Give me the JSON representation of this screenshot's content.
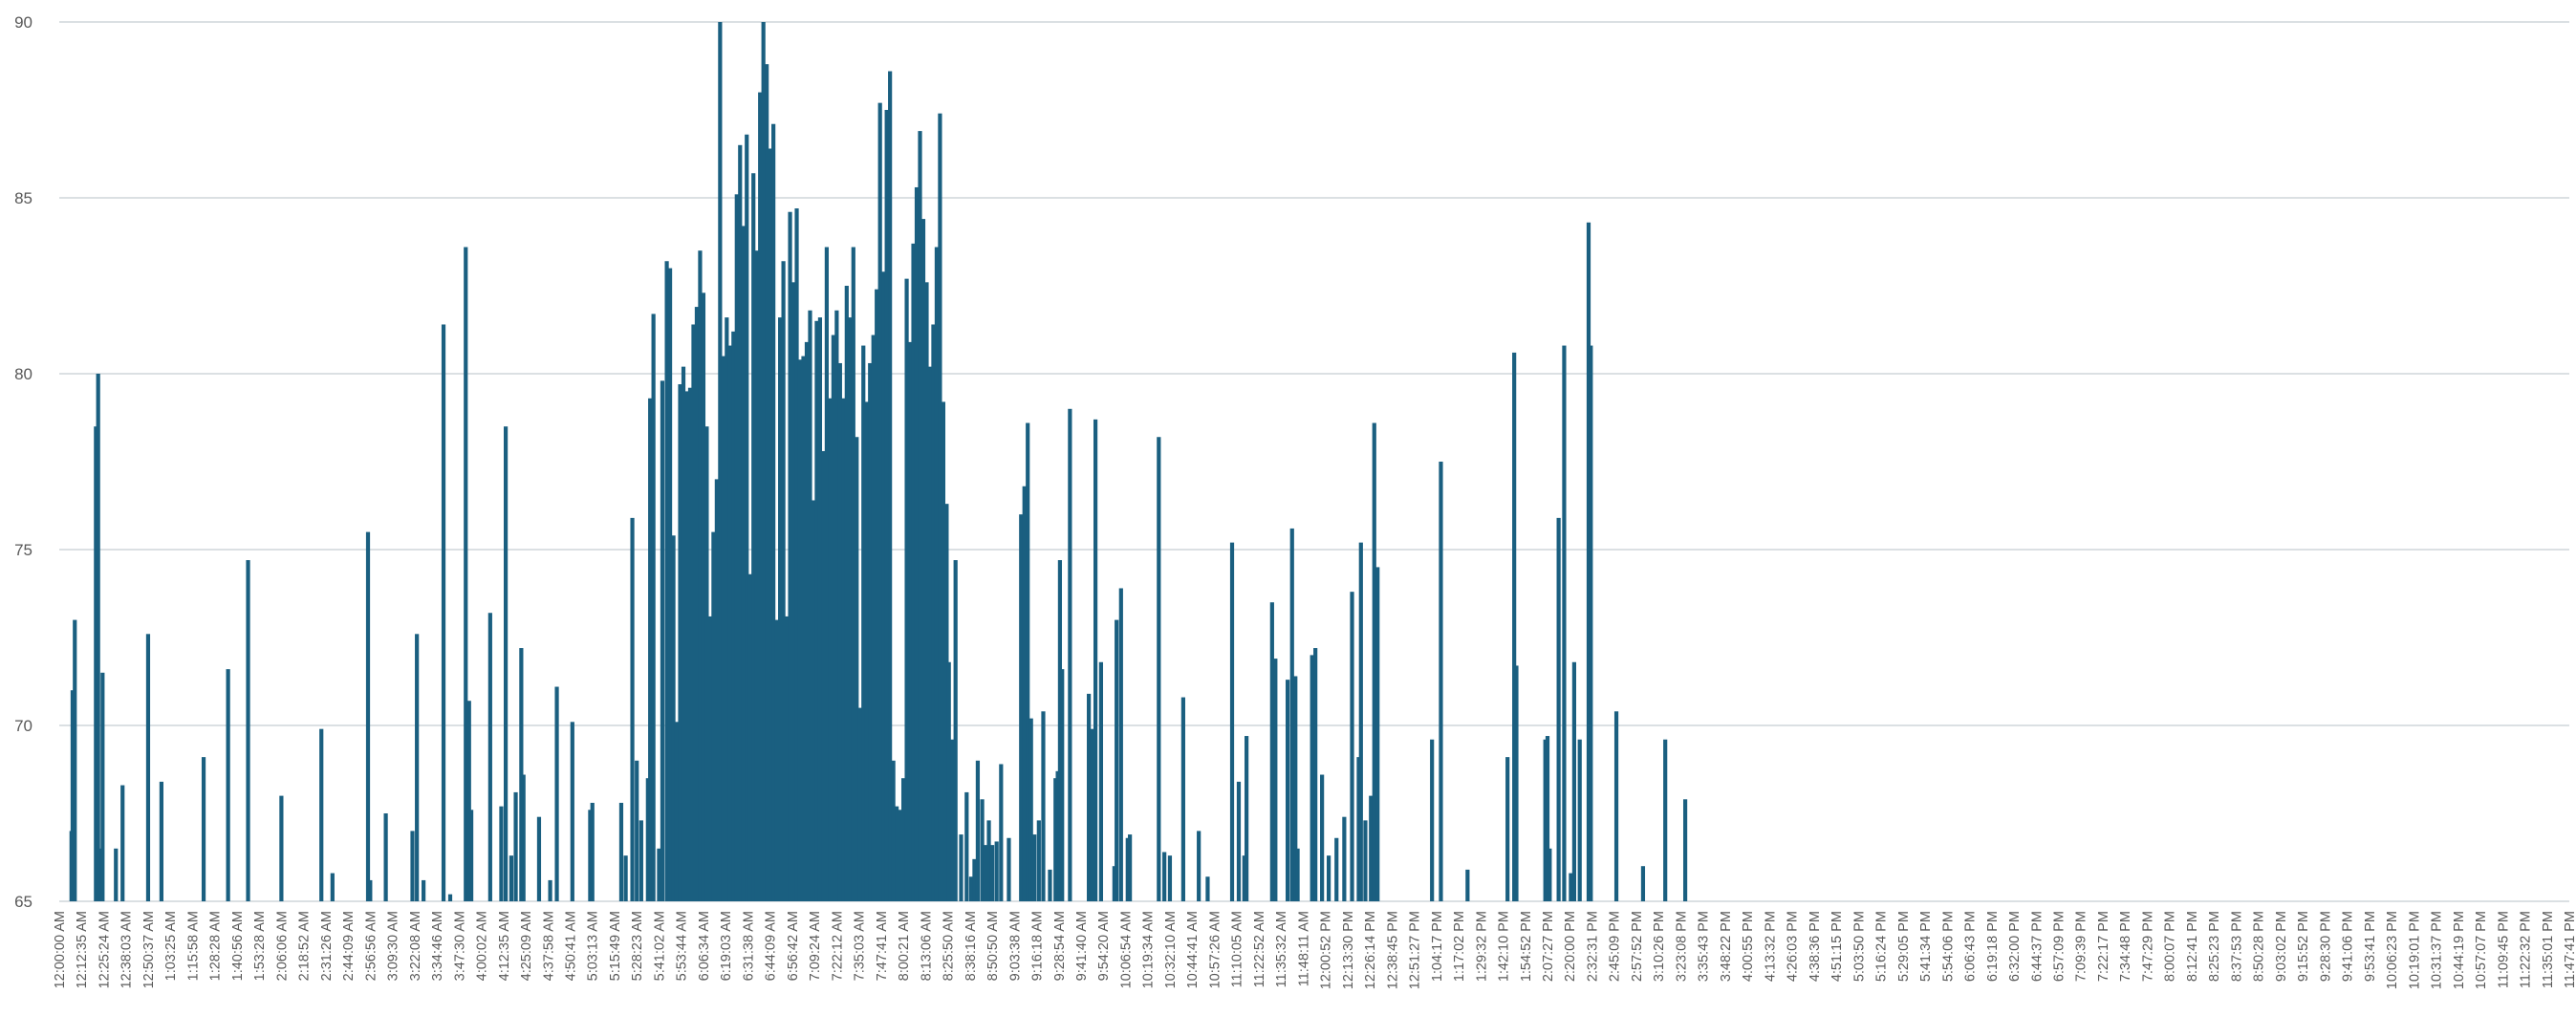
{
  "chart_data": {
    "type": "bar",
    "title": "",
    "xlabel": "",
    "ylabel": "",
    "ylim": [
      65,
      90
    ],
    "yticks": [
      "65",
      "70",
      "75",
      "80",
      "85",
      "90"
    ],
    "grid": true,
    "legend": "none",
    "colors": {
      "bar": "#1a5f80",
      "grid": "#cfd5da",
      "tick_text": "#595959"
    },
    "x_tick_labels": [
      "12:00:00 AM",
      "12:12:35 AM",
      "12:25:24 AM",
      "12:38:03 AM",
      "12:50:37 AM",
      "1:03:25 AM",
      "1:15:58 AM",
      "1:28:28 AM",
      "1:40:56 AM",
      "1:53:28 AM",
      "2:06:06 AM",
      "2:18:52 AM",
      "2:31:26 AM",
      "2:44:09 AM",
      "2:56:56 AM",
      "3:09:30 AM",
      "3:22:08 AM",
      "3:34:46 AM",
      "3:47:30 AM",
      "4:00:02 AM",
      "4:12:35 AM",
      "4:25:09 AM",
      "4:37:58 AM",
      "4:50:41 AM",
      "5:03:13 AM",
      "5:15:49 AM",
      "5:28:23 AM",
      "5:41:02 AM",
      "5:53:44 AM",
      "6:06:34 AM",
      "6:19:03 AM",
      "6:31:38 AM",
      "6:44:09 AM",
      "6:56:42 AM",
      "7:09:24 AM",
      "7:22:12 AM",
      "7:35:03 AM",
      "7:47:41 AM",
      "8:00:21 AM",
      "8:13:06 AM",
      "8:25:50 AM",
      "8:38:16 AM",
      "8:50:50 AM",
      "9:03:38 AM",
      "9:16:18 AM",
      "9:28:54 AM",
      "9:41:40 AM",
      "9:54:20 AM",
      "10:06:54 AM",
      "10:19:34 AM",
      "10:32:10 AM",
      "10:44:41 AM",
      "10:57:26 AM",
      "11:10:05 AM",
      "11:22:52 AM",
      "11:35:32 AM",
      "11:48:11 AM",
      "12:00:52 PM",
      "12:13:30 PM",
      "12:26:14 PM",
      "12:38:45 PM",
      "12:51:27 PM",
      "1:04:17 PM",
      "1:17:02 PM",
      "1:29:32 PM",
      "1:42:10 PM",
      "1:54:52 PM",
      "2:07:27 PM",
      "2:20:00 PM",
      "2:32:31 PM",
      "2:45:09 PM",
      "2:57:52 PM",
      "3:10:26 PM",
      "3:23:08 PM",
      "3:35:43 PM",
      "3:48:22 PM",
      "4:00:55 PM",
      "4:13:32 PM",
      "4:26:03 PM",
      "4:38:36 PM",
      "4:51:15 PM",
      "5:03:50 PM",
      "5:16:24 PM",
      "5:29:05 PM",
      "5:41:34 PM",
      "5:54:06 PM",
      "6:06:43 PM",
      "6:19:18 PM",
      "6:32:00 PM",
      "6:44:37 PM",
      "6:57:09 PM",
      "7:09:39 PM",
      "7:22:17 PM",
      "7:34:48 PM",
      "7:47:29 PM",
      "8:00:07 PM",
      "8:12:41 PM",
      "8:25:23 PM",
      "8:37:53 PM",
      "8:50:28 PM",
      "9:03:02 PM",
      "9:15:52 PM",
      "9:28:30 PM",
      "9:41:06 PM",
      "9:53:41 PM",
      "10:06:23 PM",
      "10:19:01 PM",
      "10:31:37 PM",
      "10:44:19 PM",
      "10:57:07 PM",
      "11:09:45 PM",
      "11:22:32 PM",
      "11:35:01 PM",
      "11:47:41 PM"
    ],
    "bars": [
      [
        0.55,
        67
      ],
      [
        0.6,
        71
      ],
      [
        0.7,
        73
      ],
      [
        1.65,
        78.5
      ],
      [
        1.75,
        80
      ],
      [
        1.85,
        66.5
      ],
      [
        1.95,
        71.5
      ],
      [
        2.55,
        66.5
      ],
      [
        2.85,
        68.3
      ],
      [
        4.0,
        72.6
      ],
      [
        4.6,
        68.4
      ],
      [
        6.5,
        69.1
      ],
      [
        7.6,
        71.6
      ],
      [
        8.5,
        74.7
      ],
      [
        10.0,
        68
      ],
      [
        11.8,
        69.9
      ],
      [
        12.3,
        65.8
      ],
      [
        13.9,
        75.5
      ],
      [
        14.0,
        65.6
      ],
      [
        14.7,
        67.5
      ],
      [
        15.9,
        67
      ],
      [
        16.1,
        72.6
      ],
      [
        16.4,
        65.6
      ],
      [
        17.3,
        81.4
      ],
      [
        17.6,
        65.2
      ],
      [
        18.3,
        83.6
      ],
      [
        18.45,
        70.7
      ],
      [
        18.55,
        67.6
      ],
      [
        19.4,
        73.2
      ],
      [
        19.9,
        67.7
      ],
      [
        20.1,
        78.5
      ],
      [
        20.35,
        66.3
      ],
      [
        20.55,
        68.1
      ],
      [
        20.8,
        72.2
      ],
      [
        20.9,
        68.6
      ],
      [
        21.6,
        67.4
      ],
      [
        22.1,
        65.6
      ],
      [
        22.4,
        71.1
      ],
      [
        23.1,
        70.1
      ],
      [
        23.9,
        67.6
      ],
      [
        24.0,
        67.8
      ],
      [
        25.3,
        67.8
      ],
      [
        25.5,
        66.3
      ],
      [
        25.8,
        75.9
      ],
      [
        26.0,
        69
      ],
      [
        26.2,
        67.3
      ],
      [
        26.5,
        68.5
      ],
      [
        26.6,
        79.3
      ],
      [
        26.75,
        81.7
      ],
      [
        27.0,
        66.5
      ],
      [
        27.15,
        79.8
      ],
      [
        27.35,
        83.2
      ],
      [
        27.5,
        83
      ],
      [
        27.65,
        75.4
      ],
      [
        27.8,
        70.1
      ],
      [
        27.95,
        79.7
      ],
      [
        28.1,
        80.2
      ],
      [
        28.25,
        79.5
      ],
      [
        28.4,
        79.6
      ],
      [
        28.55,
        81.4
      ],
      [
        28.7,
        81.9
      ],
      [
        28.85,
        83.5
      ],
      [
        29.0,
        82.3
      ],
      [
        29.15,
        78.5
      ],
      [
        29.3,
        73.1
      ],
      [
        29.45,
        75.5
      ],
      [
        29.6,
        77
      ],
      [
        29.75,
        90
      ],
      [
        29.9,
        80.5
      ],
      [
        30.05,
        81.6
      ],
      [
        30.2,
        80.8
      ],
      [
        30.35,
        81.2
      ],
      [
        30.5,
        85.1
      ],
      [
        30.65,
        86.5
      ],
      [
        30.8,
        84.2
      ],
      [
        30.95,
        86.8
      ],
      [
        31.1,
        74.3
      ],
      [
        31.25,
        85.7
      ],
      [
        31.4,
        83.5
      ],
      [
        31.55,
        88
      ],
      [
        31.7,
        90
      ],
      [
        31.85,
        88.8
      ],
      [
        32.0,
        86.4
      ],
      [
        32.15,
        87.1
      ],
      [
        32.3,
        73
      ],
      [
        32.45,
        81.6
      ],
      [
        32.6,
        83.2
      ],
      [
        32.75,
        73.1
      ],
      [
        32.9,
        84.6
      ],
      [
        33.05,
        82.6
      ],
      [
        33.2,
        84.7
      ],
      [
        33.35,
        80.4
      ],
      [
        33.5,
        80.5
      ],
      [
        33.65,
        80.9
      ],
      [
        33.8,
        81.8
      ],
      [
        33.95,
        76.4
      ],
      [
        34.1,
        81.5
      ],
      [
        34.25,
        81.6
      ],
      [
        34.4,
        77.8
      ],
      [
        34.55,
        83.6
      ],
      [
        34.7,
        79.3
      ],
      [
        34.85,
        81.1
      ],
      [
        35.0,
        81.8
      ],
      [
        35.15,
        80.3
      ],
      [
        35.3,
        79.3
      ],
      [
        35.45,
        82.5
      ],
      [
        35.6,
        81.6
      ],
      [
        35.75,
        83.6
      ],
      [
        35.9,
        78.2
      ],
      [
        36.05,
        70.5
      ],
      [
        36.2,
        80.8
      ],
      [
        36.35,
        79.2
      ],
      [
        36.5,
        80.3
      ],
      [
        36.65,
        81.1
      ],
      [
        36.8,
        82.4
      ],
      [
        36.95,
        87.7
      ],
      [
        37.1,
        82.9
      ],
      [
        37.25,
        87.5
      ],
      [
        37.4,
        88.6
      ],
      [
        37.55,
        69
      ],
      [
        37.7,
        67.7
      ],
      [
        37.85,
        67.6
      ],
      [
        38.0,
        68.5
      ],
      [
        38.15,
        82.7
      ],
      [
        38.3,
        80.9
      ],
      [
        38.45,
        83.7
      ],
      [
        38.6,
        85.3
      ],
      [
        38.75,
        86.9
      ],
      [
        38.9,
        84.4
      ],
      [
        39.05,
        82.6
      ],
      [
        39.2,
        80.2
      ],
      [
        39.35,
        81.4
      ],
      [
        39.5,
        83.6
      ],
      [
        39.65,
        87.4
      ],
      [
        39.8,
        79.2
      ],
      [
        39.95,
        76.3
      ],
      [
        40.05,
        71.8
      ],
      [
        40.2,
        69.6
      ],
      [
        40.35,
        74.7
      ],
      [
        40.6,
        66.9
      ],
      [
        40.85,
        68.1
      ],
      [
        41.05,
        65.7
      ],
      [
        41.2,
        66.2
      ],
      [
        41.35,
        69
      ],
      [
        41.55,
        67.9
      ],
      [
        41.7,
        66.6
      ],
      [
        41.85,
        67.3
      ],
      [
        42.0,
        66.6
      ],
      [
        42.2,
        66.7
      ],
      [
        42.4,
        68.9
      ],
      [
        42.75,
        66.8
      ],
      [
        43.3,
        76
      ],
      [
        43.45,
        76.8
      ],
      [
        43.6,
        78.6
      ],
      [
        43.75,
        70.2
      ],
      [
        43.9,
        66.9
      ],
      [
        44.1,
        67.3
      ],
      [
        44.3,
        70.4
      ],
      [
        44.6,
        65.9
      ],
      [
        44.85,
        68.5
      ],
      [
        44.95,
        68.7
      ],
      [
        45.05,
        74.7
      ],
      [
        45.15,
        71.6
      ],
      [
        45.5,
        79
      ],
      [
        46.35,
        70.9
      ],
      [
        46.5,
        69.9
      ],
      [
        46.65,
        78.7
      ],
      [
        46.9,
        71.8
      ],
      [
        47.5,
        66
      ],
      [
        47.6,
        73
      ],
      [
        47.8,
        73.9
      ],
      [
        48.1,
        66.8
      ],
      [
        48.2,
        66.9
      ],
      [
        49.5,
        78.2
      ],
      [
        49.75,
        66.4
      ],
      [
        50.0,
        66.3
      ],
      [
        50.6,
        70.8
      ],
      [
        51.3,
        67
      ],
      [
        51.7,
        65.7
      ],
      [
        52.8,
        75.2
      ],
      [
        53.1,
        68.4
      ],
      [
        53.35,
        66.3
      ],
      [
        53.45,
        69.7
      ],
      [
        54.6,
        73.5
      ],
      [
        54.75,
        71.9
      ],
      [
        55.3,
        71.3
      ],
      [
        55.5,
        75.6
      ],
      [
        55.65,
        71.4
      ],
      [
        55.75,
        66.5
      ],
      [
        56.4,
        72
      ],
      [
        56.55,
        72.2
      ],
      [
        56.85,
        68.6
      ],
      [
        57.15,
        66.3
      ],
      [
        57.5,
        66.8
      ],
      [
        57.85,
        67.4
      ],
      [
        58.2,
        73.8
      ],
      [
        58.5,
        69.1
      ],
      [
        58.6,
        75.2
      ],
      [
        58.8,
        67.3
      ],
      [
        59.05,
        68
      ],
      [
        59.2,
        78.6
      ],
      [
        59.35,
        74.5
      ],
      [
        61.8,
        69.6
      ],
      [
        62.2,
        77.5
      ],
      [
        63.4,
        65.9
      ],
      [
        65.2,
        69.1
      ],
      [
        65.5,
        80.6
      ],
      [
        65.6,
        71.7
      ],
      [
        66.9,
        69.6
      ],
      [
        67.0,
        69.7
      ],
      [
        67.1,
        66.5
      ],
      [
        67.5,
        75.9
      ],
      [
        67.75,
        80.8
      ],
      [
        68.05,
        65.8
      ],
      [
        68.2,
        71.8
      ],
      [
        68.45,
        69.6
      ],
      [
        68.85,
        84.3
      ],
      [
        68.95,
        80.8
      ],
      [
        70.1,
        70.4
      ],
      [
        71.3,
        66
      ],
      [
        72.3,
        69.6
      ],
      [
        73.2,
        67.9
      ]
    ]
  }
}
